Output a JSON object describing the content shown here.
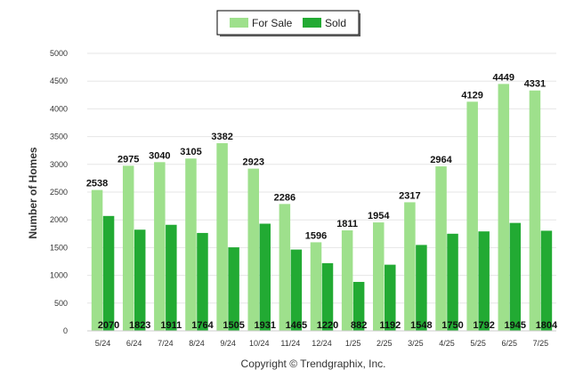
{
  "chart_data": {
    "type": "bar",
    "ylabel": "Number of Homes",
    "ylim": [
      0,
      5000
    ],
    "yticks": [
      0,
      500,
      1000,
      1500,
      2000,
      2500,
      3000,
      3500,
      4000,
      4500,
      5000
    ],
    "categories": [
      "5/24",
      "6/24",
      "7/24",
      "8/24",
      "9/24",
      "10/24",
      "11/24",
      "12/24",
      "1/25",
      "2/25",
      "3/25",
      "4/25",
      "5/25",
      "6/25",
      "7/25"
    ],
    "series": [
      {
        "name": "For Sale",
        "color": "#9ee08c",
        "values": [
          2538,
          2975,
          3040,
          3105,
          3382,
          2923,
          2286,
          1596,
          1811,
          1954,
          2317,
          2964,
          4129,
          4449,
          4331
        ]
      },
      {
        "name": "Sold",
        "color": "#22aa33",
        "values": [
          2070,
          1823,
          1911,
          1764,
          1505,
          1931,
          1465,
          1220,
          882,
          1192,
          1548,
          1750,
          1792,
          1945,
          1804
        ]
      }
    ],
    "legend_position": "top-center",
    "grid": true
  },
  "footer": {
    "copyright": "Copyright © Trendgraphix, Inc."
  }
}
